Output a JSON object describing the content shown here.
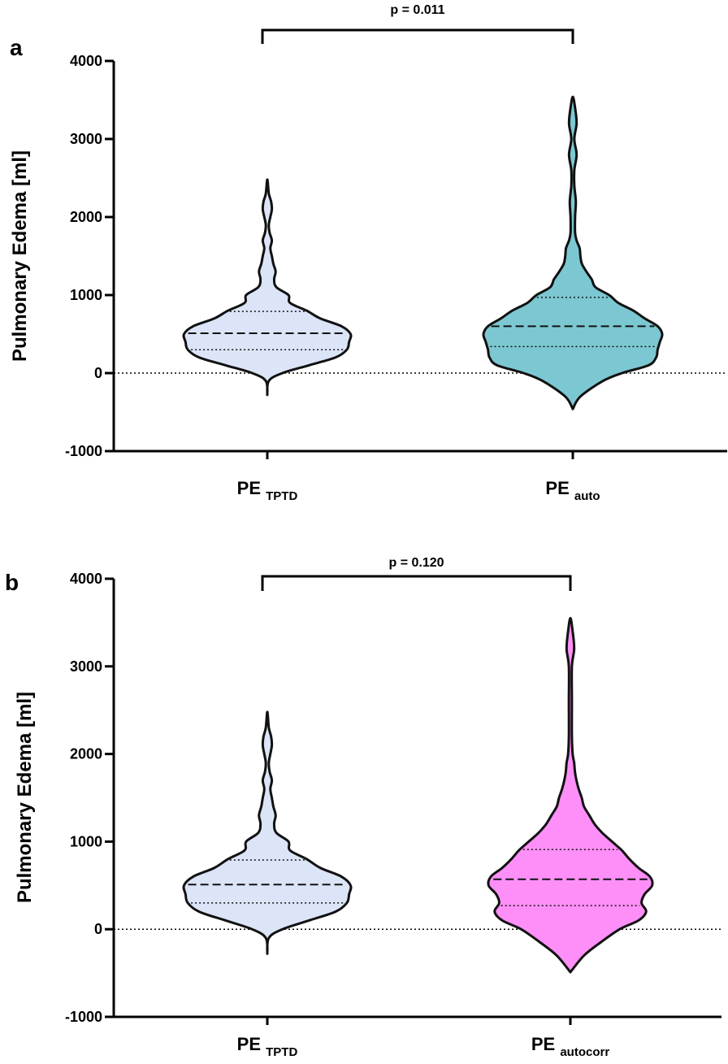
{
  "chart_data": [
    {
      "panel": "a",
      "type": "violin",
      "ylabel": "Pulmonary Edema [ml]",
      "ylim": [
        -1000,
        4000
      ],
      "yticks": [
        "-1000",
        "0",
        "1000",
        "2000",
        "3000",
        "4000"
      ],
      "reference_line": 0,
      "pvalue": "p = 0.011",
      "series": [
        {
          "label_main": "PE",
          "label_sub": "TPTD",
          "color": "#dce4f8",
          "min": -280,
          "max": 2480,
          "median": 510,
          "q1": 300,
          "q3": 790,
          "density": [
            [
              -280,
              0
            ],
            [
              -100,
              2
            ],
            [
              0,
              20
            ],
            [
              100,
              55
            ],
            [
              200,
              90
            ],
            [
              300,
              105
            ],
            [
              400,
              108
            ],
            [
              500,
              110
            ],
            [
              600,
              98
            ],
            [
              700,
              70
            ],
            [
              800,
              52
            ],
            [
              900,
              30
            ],
            [
              1000,
              28
            ],
            [
              1100,
              12
            ],
            [
              1200,
              9
            ],
            [
              1300,
              11
            ],
            [
              1400,
              8
            ],
            [
              1500,
              6
            ],
            [
              1600,
              4
            ],
            [
              1700,
              6
            ],
            [
              1800,
              3
            ],
            [
              1900,
              2
            ],
            [
              2000,
              4
            ],
            [
              2100,
              6
            ],
            [
              2200,
              5
            ],
            [
              2300,
              2
            ],
            [
              2480,
              0
            ]
          ]
        },
        {
          "label_main": "PE",
          "label_sub": "auto",
          "color": "#7cc8d2",
          "min": -460,
          "max": 3540,
          "median": 600,
          "q1": 340,
          "q3": 970,
          "density": [
            [
              -460,
              0
            ],
            [
              -300,
              10
            ],
            [
              -100,
              40
            ],
            [
              0,
              65
            ],
            [
              100,
              100
            ],
            [
              200,
              110
            ],
            [
              300,
              112
            ],
            [
              400,
              115
            ],
            [
              500,
              118
            ],
            [
              600,
              112
            ],
            [
              700,
              95
            ],
            [
              800,
              80
            ],
            [
              900,
              60
            ],
            [
              1000,
              48
            ],
            [
              1100,
              30
            ],
            [
              1200,
              25
            ],
            [
              1300,
              18
            ],
            [
              1400,
              12
            ],
            [
              1500,
              10
            ],
            [
              1600,
              9
            ],
            [
              1700,
              5
            ],
            [
              1800,
              3
            ],
            [
              2000,
              3
            ],
            [
              2200,
              4
            ],
            [
              2400,
              2
            ],
            [
              2600,
              2
            ],
            [
              2800,
              5
            ],
            [
              3000,
              2
            ],
            [
              3200,
              5
            ],
            [
              3400,
              3
            ],
            [
              3540,
              0
            ]
          ]
        }
      ]
    },
    {
      "panel": "b",
      "type": "violin",
      "ylabel": "Pulmonary Edema [ml]",
      "ylim": [
        -1000,
        4000
      ],
      "yticks": [
        "-1000",
        "0",
        "1000",
        "2000",
        "3000",
        "4000"
      ],
      "reference_line": 0,
      "pvalue": "p = 0.120",
      "series": [
        {
          "label_main": "PE",
          "label_sub": "TPTD",
          "color": "#dce4f8",
          "min": -280,
          "max": 2480,
          "median": 510,
          "q1": 300,
          "q3": 790,
          "density": [
            [
              -280,
              0
            ],
            [
              -100,
              2
            ],
            [
              0,
              20
            ],
            [
              100,
              55
            ],
            [
              200,
              90
            ],
            [
              300,
              105
            ],
            [
              400,
              108
            ],
            [
              500,
              110
            ],
            [
              600,
              98
            ],
            [
              700,
              70
            ],
            [
              800,
              52
            ],
            [
              900,
              30
            ],
            [
              1000,
              28
            ],
            [
              1100,
              12
            ],
            [
              1200,
              9
            ],
            [
              1300,
              11
            ],
            [
              1400,
              8
            ],
            [
              1500,
              6
            ],
            [
              1600,
              4
            ],
            [
              1700,
              6
            ],
            [
              1800,
              3
            ],
            [
              1900,
              2
            ],
            [
              2000,
              4
            ],
            [
              2100,
              6
            ],
            [
              2200,
              5
            ],
            [
              2300,
              2
            ],
            [
              2480,
              0
            ]
          ]
        },
        {
          "label_main": "PE",
          "label_sub": "autocorr",
          "color": "#ff8ff8",
          "min": -490,
          "max": 3550,
          "median": 570,
          "q1": 270,
          "q3": 910,
          "density": [
            [
              -490,
              0
            ],
            [
              -300,
              18
            ],
            [
              -150,
              40
            ],
            [
              0,
              65
            ],
            [
              100,
              90
            ],
            [
              200,
              100
            ],
            [
              300,
              94
            ],
            [
              400,
              98
            ],
            [
              500,
              108
            ],
            [
              600,
              105
            ],
            [
              700,
              90
            ],
            [
              800,
              78
            ],
            [
              900,
              68
            ],
            [
              1000,
              55
            ],
            [
              1100,
              42
            ],
            [
              1200,
              32
            ],
            [
              1300,
              25
            ],
            [
              1400,
              18
            ],
            [
              1500,
              15
            ],
            [
              1600,
              11
            ],
            [
              1700,
              8
            ],
            [
              1800,
              6
            ],
            [
              1900,
              5
            ],
            [
              2000,
              3
            ],
            [
              2200,
              2
            ],
            [
              2600,
              2
            ],
            [
              3000,
              2
            ],
            [
              3200,
              5
            ],
            [
              3400,
              3
            ],
            [
              3550,
              0
            ]
          ]
        }
      ]
    }
  ]
}
